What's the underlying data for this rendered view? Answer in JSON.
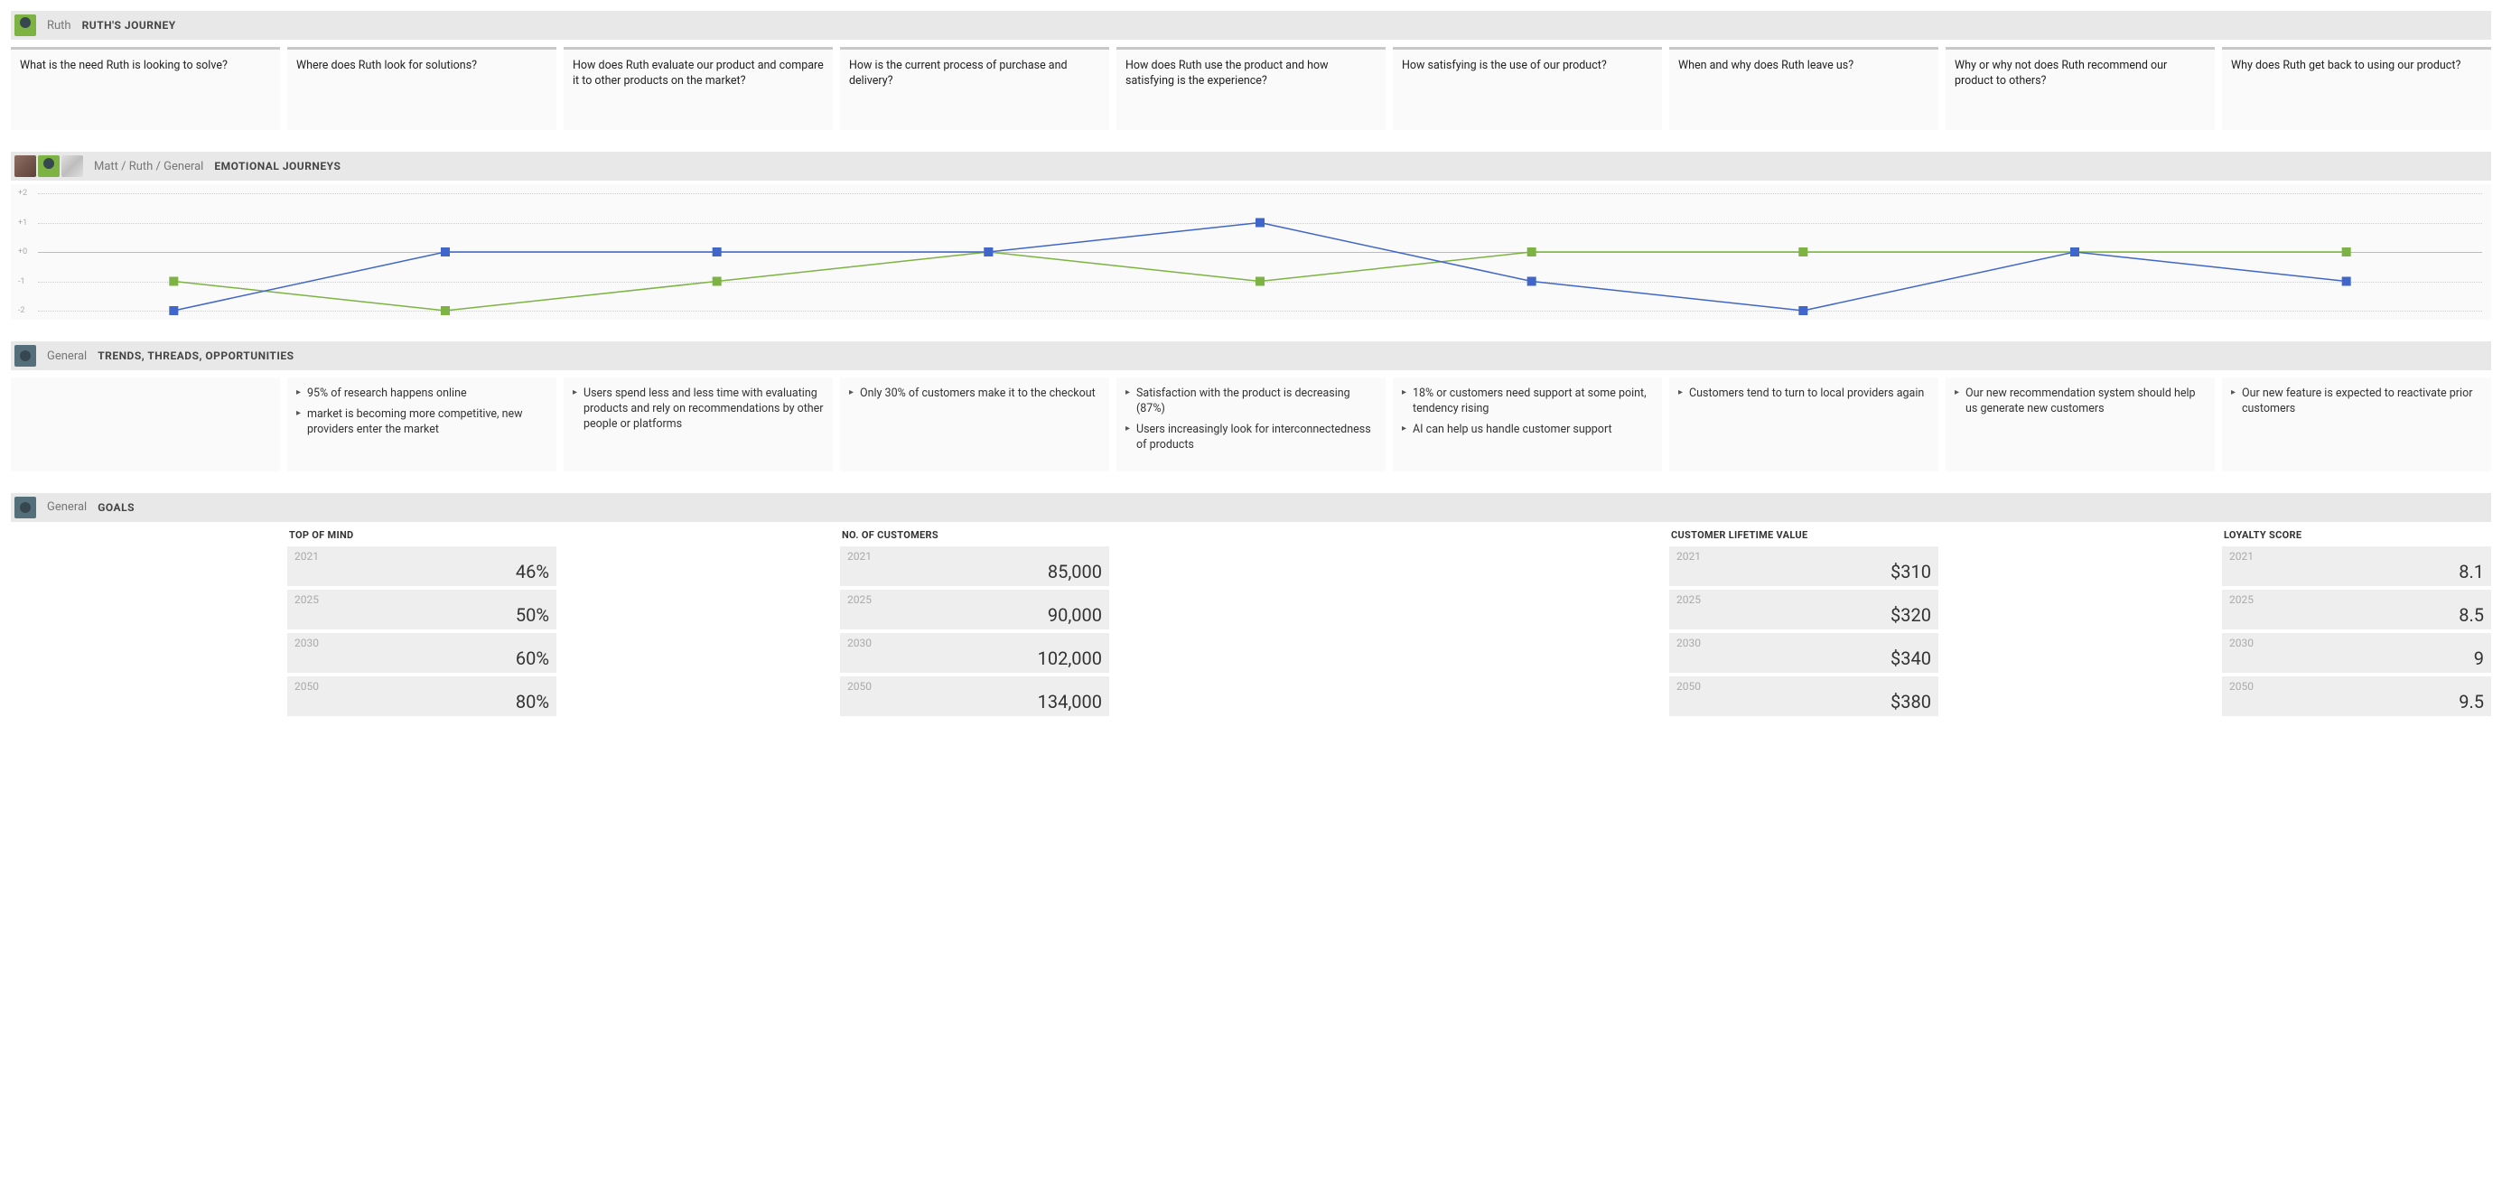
{
  "journey": {
    "persona": "Ruth",
    "title": "RUTH'S JOURNEY",
    "cards": [
      "What is the need Ruth is looking to solve?",
      "Where does Ruth look for solutions?",
      "How does Ruth evaluate our product and compare it to other products on the market?",
      "How is the current process of purchase and delivery?",
      "How does Ruth use the product and how satisfying is the experience?",
      "How satisfying is the use of our product?",
      "When and why does Ruth leave us?",
      "Why or why not does Ruth recommend our product to others?",
      "Why does Ruth get back to using our product?"
    ]
  },
  "emotional": {
    "breadcrumb": "Matt / Ruth / General",
    "title": "EMOTIONAL JOURNEYS",
    "y_labels": [
      "+2",
      "+1",
      "+0",
      "-1",
      "-2"
    ],
    "y_values": [
      2,
      1,
      0,
      -1,
      -2
    ],
    "series": [
      {
        "name": "ruth",
        "color": "#7cb342",
        "values": [
          -1,
          -2,
          -1,
          0,
          -1,
          0,
          0,
          0,
          0
        ]
      },
      {
        "name": "matt",
        "color": "#3f66c8",
        "values": [
          -2,
          0,
          0,
          0,
          1,
          -1,
          -2,
          0,
          -1
        ]
      }
    ],
    "marker_size": 10,
    "line_width": 1.5,
    "background": "#fafafa",
    "grid_color": "#cccccc",
    "zero_line_color": "#bbbbbb"
  },
  "trends": {
    "label": "General",
    "title": "TRENDS, THREADS, OPPORTUNITIES",
    "cards": [
      [],
      [
        "95% of research happens online",
        "market is becoming more competitive, new providers enter the market"
      ],
      [
        "Users spend less and less time with evaluating products and rely on recommendations by other people or platforms"
      ],
      [
        "Only 30% of customers make it to the checkout"
      ],
      [
        "Satisfaction with the product is decreasing (87%)",
        "Users increasingly look for interconnectedness of products"
      ],
      [
        "18% or customers need support at some point, tendency rising",
        "AI can help us handle customer support"
      ],
      [
        "Customers tend to turn to local providers again"
      ],
      [
        "Our new recommendation system should help us generate new customers"
      ],
      [
        "Our new feature is expected to reactivate prior customers"
      ]
    ]
  },
  "goals": {
    "label": "General",
    "title": "GOALS",
    "columns": [
      null,
      {
        "title": "TOP OF MIND",
        "rows": [
          {
            "year": "2021",
            "value": "46%"
          },
          {
            "year": "2025",
            "value": "50%"
          },
          {
            "year": "2030",
            "value": "60%"
          },
          {
            "year": "2050",
            "value": "80%"
          }
        ]
      },
      null,
      {
        "title": "NO. OF CUSTOMERS",
        "rows": [
          {
            "year": "2021",
            "value": "85,000"
          },
          {
            "year": "2025",
            "value": "90,000"
          },
          {
            "year": "2030",
            "value": "102,000"
          },
          {
            "year": "2050",
            "value": "134,000"
          }
        ]
      },
      null,
      null,
      {
        "title": "CUSTOMER LIFETIME VALUE",
        "rows": [
          {
            "year": "2021",
            "value": "$310"
          },
          {
            "year": "2025",
            "value": "$320"
          },
          {
            "year": "2030",
            "value": "$340"
          },
          {
            "year": "2050",
            "value": "$380"
          }
        ]
      },
      null,
      {
        "title": "LOYALTY SCORE",
        "rows": [
          {
            "year": "2021",
            "value": "8.1"
          },
          {
            "year": "2025",
            "value": "8.5"
          },
          {
            "year": "2030",
            "value": "9"
          },
          {
            "year": "2050",
            "value": "9.5"
          }
        ]
      }
    ]
  }
}
